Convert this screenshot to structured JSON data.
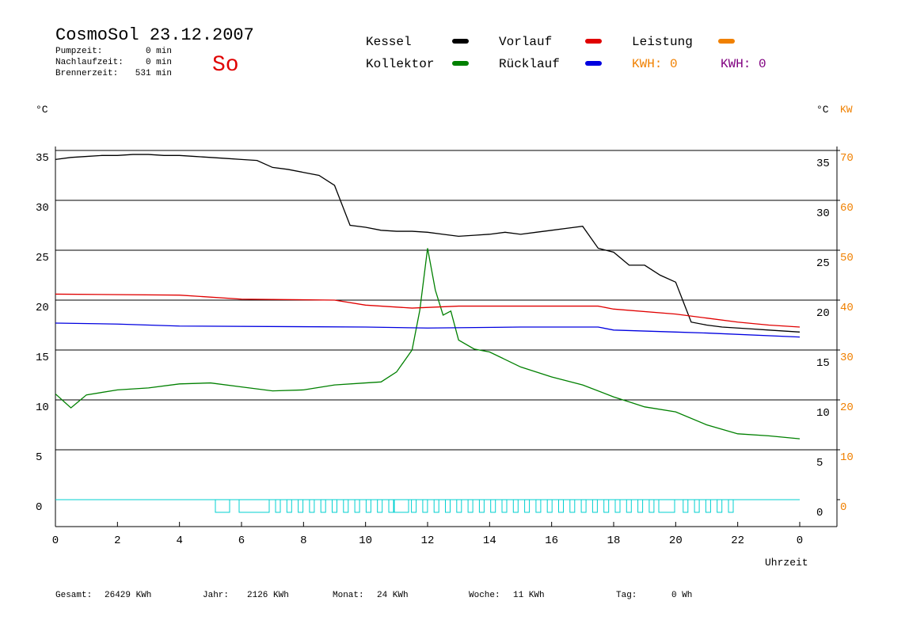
{
  "chart_data": {
    "type": "line",
    "title": "CosmoSol 23.12.2007",
    "day": "So",
    "info": [
      {
        "label": "Pumpzeit:",
        "value": "0 min"
      },
      {
        "label": "Nachlaufzeit:",
        "value": "0 min"
      },
      {
        "label": "Brennerzeit:",
        "value": "531 min"
      }
    ],
    "kwh_labels": [
      {
        "text": "KWH: 0",
        "color": "#f08000"
      },
      {
        "text": "KWH: 0",
        "color": "#800080"
      }
    ],
    "ylabel": "°C",
    "y2label_left": "°C",
    "y2label": "KW",
    "xlabel": "Uhrzeit",
    "xlim": [
      0,
      25.2
    ],
    "xticks": [
      0,
      2,
      4,
      6,
      8,
      10,
      12,
      14,
      16,
      18,
      20,
      22,
      {
        "value": 24,
        "label": "0"
      }
    ],
    "ylim": [
      -2.7,
      35
    ],
    "yticks": [
      0,
      5,
      10,
      15,
      20,
      25,
      30,
      35
    ],
    "y2lim": [
      -5.4,
      70
    ],
    "y2ticks": [
      0,
      10,
      20,
      30,
      40,
      50,
      60,
      70
    ],
    "grid": true,
    "series": [
      {
        "name": "Kessel",
        "color": "#000000",
        "x": [
          0,
          0.5,
          1,
          1.5,
          2,
          2.5,
          3,
          3.5,
          4,
          4.5,
          5,
          5.5,
          6,
          6.5,
          7,
          7.5,
          8,
          8.5,
          9,
          9.5,
          10,
          10.5,
          11,
          11.5,
          12,
          12.5,
          13,
          13.5,
          14,
          14.5,
          15,
          15.5,
          16,
          16.5,
          17,
          17.5,
          18,
          18.5,
          19,
          19.5,
          20,
          20.5,
          21,
          21.5,
          22,
          22.5,
          23,
          23.5,
          24
        ],
        "values": [
          34.1,
          34.3,
          34.4,
          34.5,
          34.5,
          34.6,
          34.6,
          34.5,
          34.5,
          34.4,
          34.3,
          34.2,
          34.1,
          34,
          33.3,
          33.1,
          32.8,
          32.5,
          31.5,
          27.5,
          27.3,
          27,
          26.9,
          26.9,
          26.8,
          26.6,
          26.4,
          26.5,
          26.6,
          26.8,
          26.6,
          26.8,
          27,
          27.2,
          27.4,
          25.2,
          24.8,
          23.5,
          23.5,
          22.5,
          21.8,
          17.8,
          17.5,
          17.3,
          17.2,
          17.1,
          17,
          16.9,
          16.8
        ]
      },
      {
        "name": "Kollektor",
        "color": "#008000",
        "x": [
          0,
          0.5,
          1,
          2,
          3,
          4,
          5,
          6,
          7,
          8,
          9,
          10,
          10.5,
          11,
          11.5,
          11.75,
          12,
          12.25,
          12.5,
          12.75,
          13,
          13.5,
          14,
          15,
          16,
          17,
          18,
          19,
          20,
          21,
          22,
          23,
          24
        ],
        "values": [
          10.6,
          9.2,
          10.5,
          11,
          11.2,
          11.6,
          11.7,
          11.3,
          10.9,
          11,
          11.5,
          11.7,
          11.8,
          12.8,
          15,
          19,
          25.2,
          21,
          18.5,
          18.9,
          16,
          15.1,
          14.8,
          13.3,
          12.3,
          11.5,
          10.3,
          9.3,
          8.8,
          7.5,
          6.6,
          6.4,
          6.1
        ]
      },
      {
        "name": "Vorlauf",
        "color": "#e00000",
        "x": [
          0,
          4,
          6,
          9,
          10,
          11.5,
          13,
          16,
          17.5,
          18,
          20,
          21,
          22,
          23,
          24
        ],
        "values": [
          20.6,
          20.5,
          20.1,
          20,
          19.5,
          19.2,
          19.4,
          19.4,
          19.4,
          19.1,
          18.6,
          18.2,
          17.8,
          17.5,
          17.3
        ]
      },
      {
        "name": "Rücklauf",
        "color": "#0000e0",
        "x": [
          0,
          2,
          4,
          10,
          12,
          15,
          17.5,
          18,
          20,
          21,
          24
        ],
        "values": [
          17.7,
          17.6,
          17.4,
          17.3,
          17.2,
          17.3,
          17.3,
          17,
          16.8,
          16.7,
          16.3
        ]
      },
      {
        "name": "Leistung",
        "color": "#f08000",
        "axis": "y2",
        "x": [],
        "values": []
      }
    ],
    "totals": [
      {
        "label": "Gesamt:",
        "value": "26429 KWh"
      },
      {
        "label": "Jahr:",
        "value": "2126 KWh"
      },
      {
        "label": "Monat:",
        "value": "24 KWh"
      },
      {
        "label": "Woche:",
        "value": "11 KWh"
      },
      {
        "label": "Tag:",
        "value": "0 Wh"
      }
    ]
  }
}
